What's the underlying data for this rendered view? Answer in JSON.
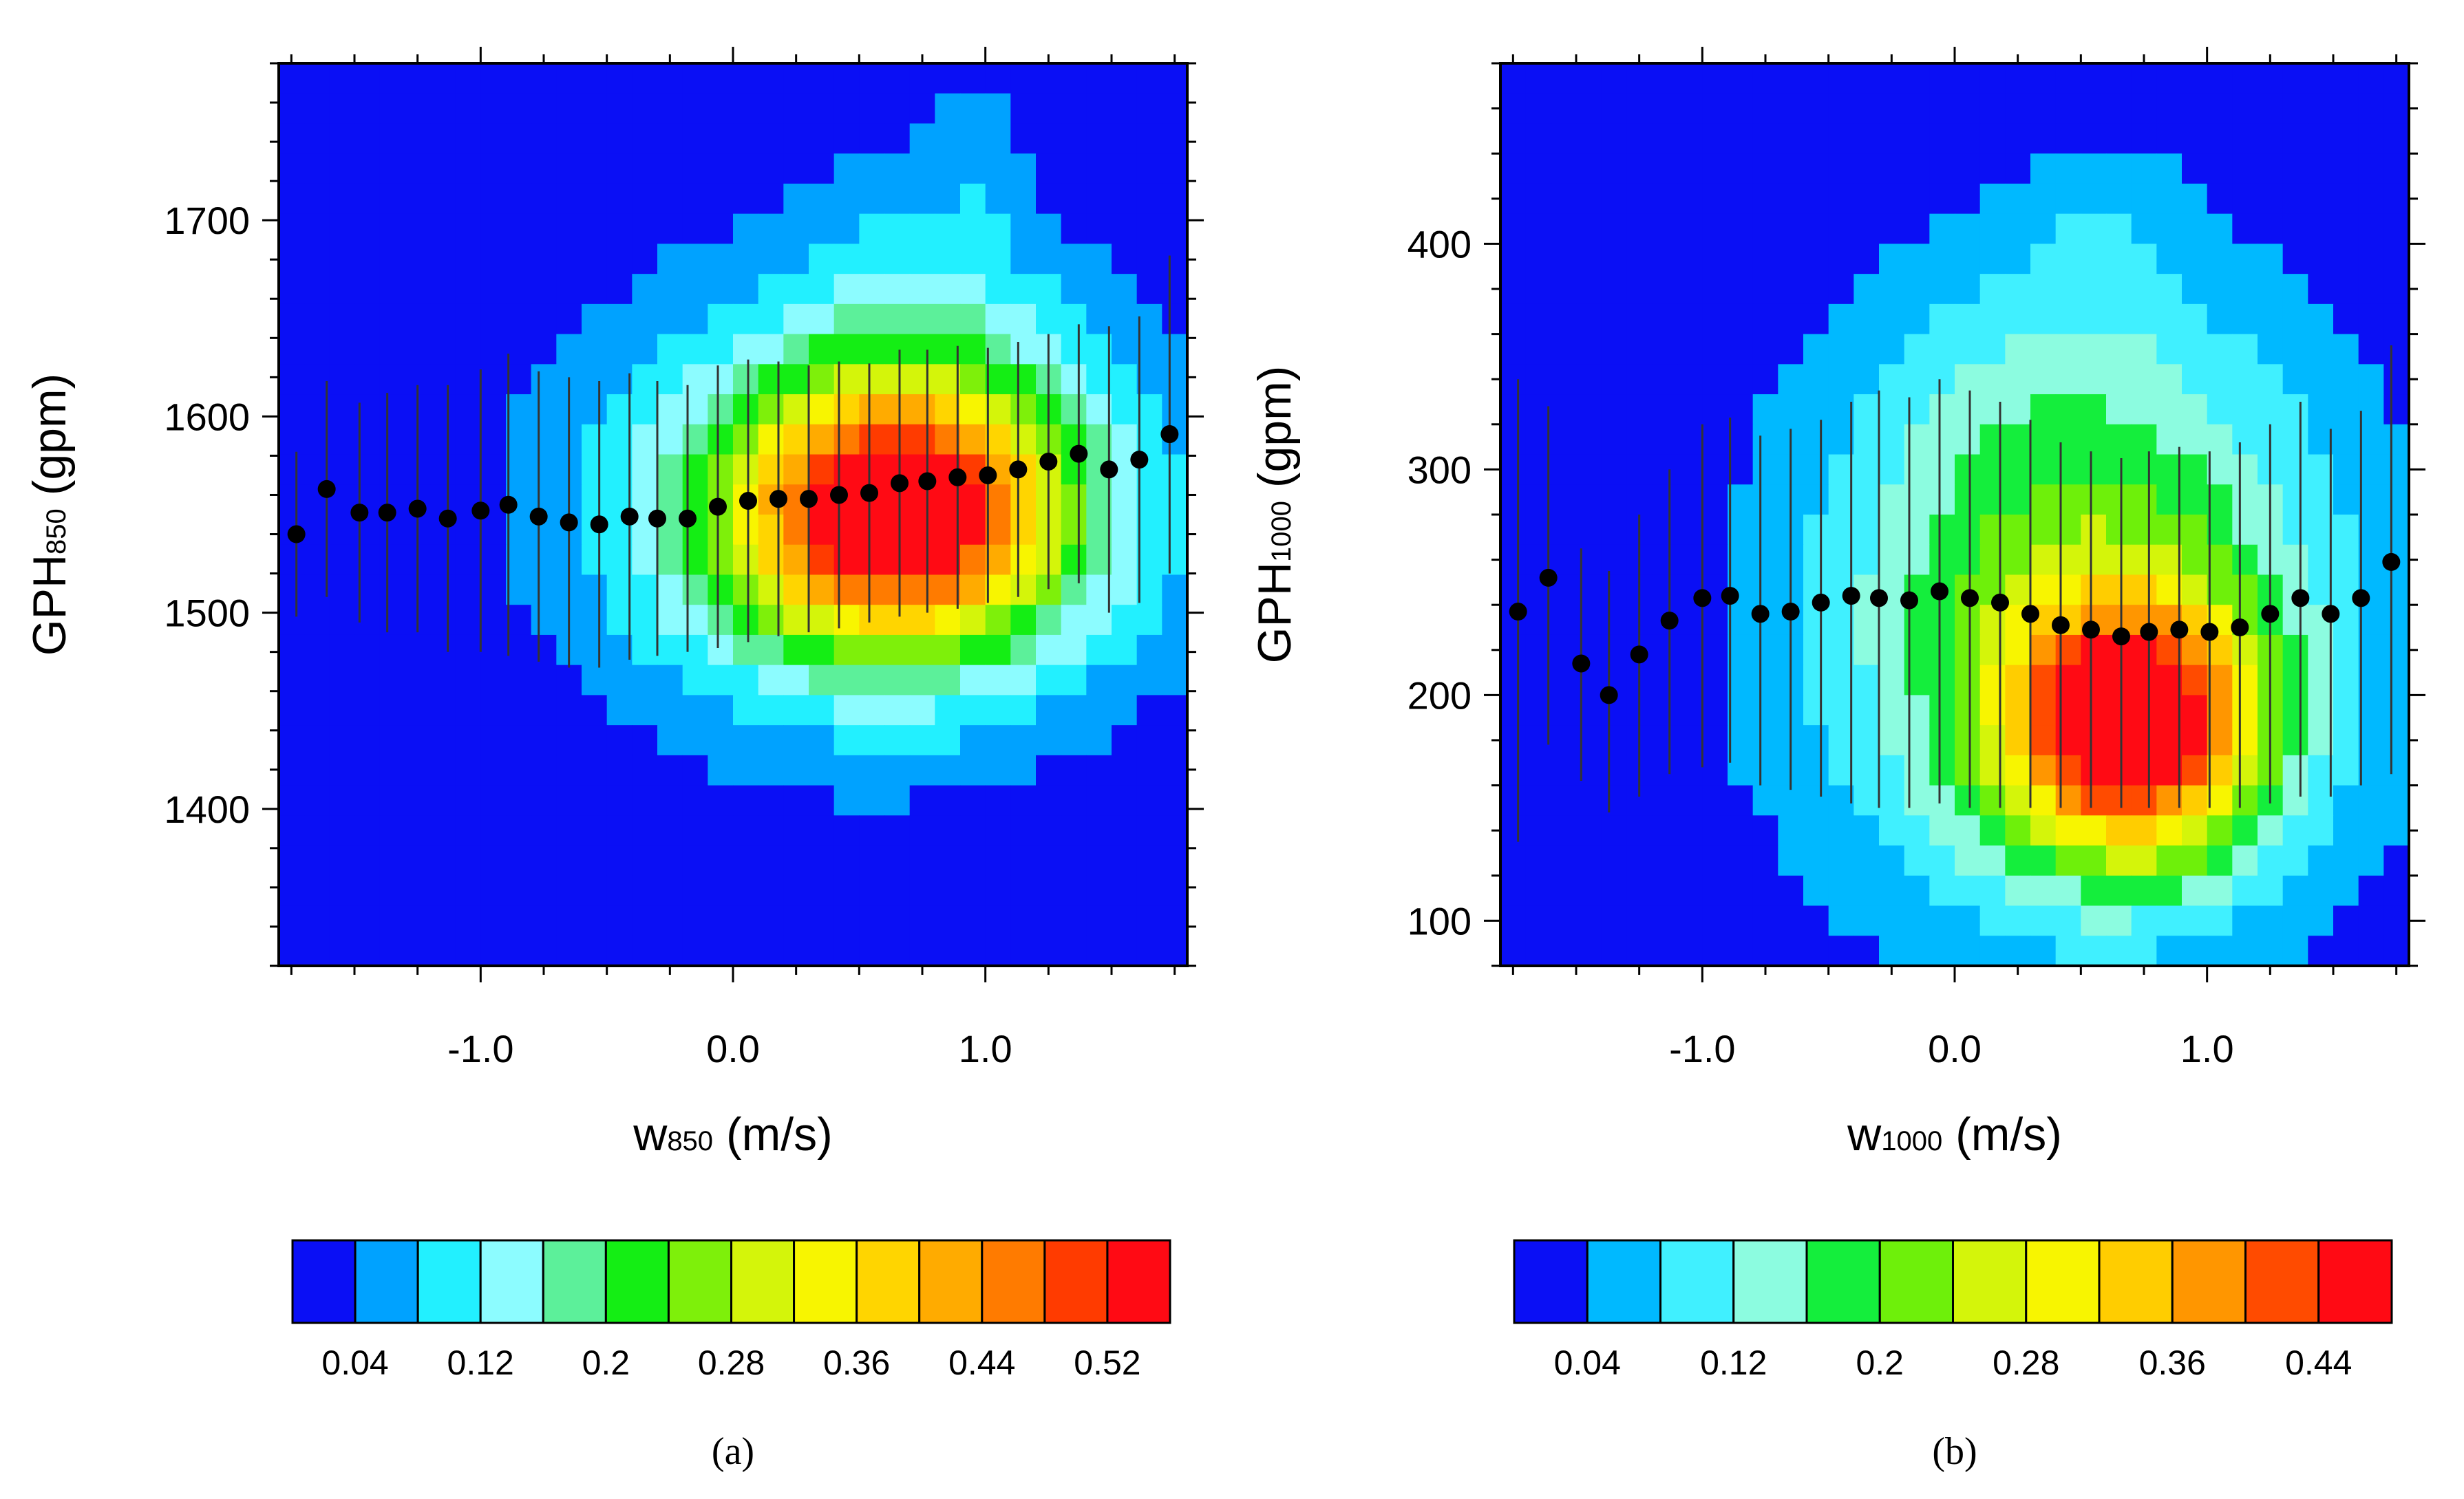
{
  "chart_data": [
    {
      "type": "heatmap",
      "panel": "(a)",
      "xlabel": {
        "main": "w",
        "sub": "850",
        "unit": " (m/s)"
      },
      "ylabel": {
        "main": "GPH",
        "sub": "850",
        "unit": " (gpm)"
      },
      "xlim": [
        -1.8,
        1.8
      ],
      "ylim": [
        1320,
        1780
      ],
      "xticks": [
        {
          "v": -1.0,
          "label": "-1.0"
        },
        {
          "v": 0.0,
          "label": "0.0"
        },
        {
          "v": 1.0,
          "label": "1.0"
        }
      ],
      "yticks": [
        {
          "v": 1400,
          "label": "1400"
        },
        {
          "v": 1500,
          "label": "1500"
        },
        {
          "v": 1600,
          "label": "1600"
        },
        {
          "v": 1700,
          "label": "1700"
        }
      ],
      "colorbar": {
        "colors": [
          "#0a0ff5",
          "#00a2ff",
          "#22f0ff",
          "#8cfcff",
          "#5cf09a",
          "#14ee14",
          "#7ef00a",
          "#d4f50a",
          "#f8f500",
          "#ffd500",
          "#ffab00",
          "#ff7b00",
          "#ff3b00",
          "#ff0a14"
        ],
        "labels": [
          {
            "after_box": 1,
            "label": "0.04"
          },
          {
            "after_box": 3,
            "label": "0.12"
          },
          {
            "after_box": 5,
            "label": "0.2"
          },
          {
            "after_box": 7,
            "label": "0.28"
          },
          {
            "after_box": 9,
            "label": "0.36"
          },
          {
            "after_box": 11,
            "label": "0.44"
          },
          {
            "after_box": 13,
            "label": "0.52"
          }
        ]
      },
      "density_blobs": [
        {
          "x": 0.65,
          "y": 1550,
          "sx": 0.45,
          "sy": 45,
          "amp": 0.44
        },
        {
          "x": 0.55,
          "y": 1555,
          "sx": 0.85,
          "sy": 85,
          "amp": 0.18
        },
        {
          "x": 0.75,
          "y": 1640,
          "sx": 0.35,
          "sy": 85,
          "amp": 0.05
        },
        {
          "x": 1.0,
          "y": 1735,
          "sx": 0.12,
          "sy": 40,
          "amp": 0.03
        }
      ],
      "points": {
        "x": [
          -1.73,
          -1.61,
          -1.48,
          -1.37,
          -1.25,
          -1.13,
          -1.0,
          -0.89,
          -0.77,
          -0.65,
          -0.53,
          -0.41,
          -0.3,
          -0.18,
          -0.06,
          0.06,
          0.18,
          0.3,
          0.42,
          0.54,
          0.66,
          0.77,
          0.89,
          1.01,
          1.13,
          1.25,
          1.37,
          1.49,
          1.61,
          1.73
        ],
        "y": [
          1540,
          1563,
          1551,
          1551,
          1553,
          1548,
          1552,
          1555,
          1549,
          1546,
          1545,
          1549,
          1548,
          1548,
          1554,
          1557,
          1558,
          1558,
          1560,
          1561,
          1566,
          1567,
          1569,
          1570,
          1573,
          1577,
          1581,
          1573,
          1578,
          1591
        ],
        "lower": [
          1498,
          1508,
          1495,
          1490,
          1490,
          1480,
          1480,
          1478,
          1475,
          1472,
          1472,
          1476,
          1478,
          1480,
          1482,
          1485,
          1488,
          1490,
          1492,
          1495,
          1498,
          1500,
          1502,
          1505,
          1508,
          1512,
          1515,
          1500,
          1505,
          1520
        ],
        "upper": [
          1582,
          1618,
          1607,
          1612,
          1616,
          1616,
          1624,
          1632,
          1623,
          1620,
          1618,
          1622,
          1618,
          1616,
          1626,
          1629,
          1628,
          1626,
          1628,
          1627,
          1634,
          1634,
          1636,
          1635,
          1638,
          1642,
          1647,
          1646,
          1651,
          1682
        ]
      }
    },
    {
      "type": "heatmap",
      "panel": "(b)",
      "xlabel": {
        "main": "w",
        "sub": "1000",
        "unit": " (m/s)"
      },
      "ylabel": {
        "main": "GPH",
        "sub": "1000",
        "unit": " (gpm)"
      },
      "xlim": [
        -1.8,
        1.8
      ],
      "ylim": [
        80,
        480
      ],
      "xticks": [
        {
          "v": -1.0,
          "label": "-1.0"
        },
        {
          "v": 0.0,
          "label": "0.0"
        },
        {
          "v": 1.0,
          "label": "1.0"
        }
      ],
      "yticks": [
        {
          "v": 100,
          "label": "100"
        },
        {
          "v": 200,
          "label": "200"
        },
        {
          "v": 300,
          "label": "300"
        },
        {
          "v": 400,
          "label": "400"
        }
      ],
      "colorbar": {
        "colors": [
          "#0a0ff5",
          "#00b9ff",
          "#40f0ff",
          "#8cfce0",
          "#14ee3c",
          "#6ef00a",
          "#d4f50a",
          "#f8f500",
          "#ffcd00",
          "#ff9600",
          "#ff4b00",
          "#ff0a14"
        ],
        "labels": [
          {
            "after_box": 1,
            "label": "0.04"
          },
          {
            "after_box": 3,
            "label": "0.12"
          },
          {
            "after_box": 5,
            "label": "0.2"
          },
          {
            "after_box": 7,
            "label": "0.28"
          },
          {
            "after_box": 9,
            "label": "0.36"
          },
          {
            "after_box": 11,
            "label": "0.44"
          }
        ]
      },
      "density_blobs": [
        {
          "x": 0.7,
          "y": 185,
          "sx": 0.35,
          "sy": 40,
          "amp": 0.38
        },
        {
          "x": 0.5,
          "y": 225,
          "sx": 0.8,
          "sy": 95,
          "amp": 0.2
        },
        {
          "x": 0.45,
          "y": 330,
          "sx": 0.6,
          "sy": 70,
          "amp": 0.05
        },
        {
          "x": 0.6,
          "y": 410,
          "sx": 0.22,
          "sy": 30,
          "amp": 0.03
        }
      ],
      "points": {
        "x": [
          -1.73,
          -1.61,
          -1.48,
          -1.37,
          -1.25,
          -1.13,
          -1.0,
          -0.89,
          -0.77,
          -0.65,
          -0.53,
          -0.41,
          -0.3,
          -0.18,
          -0.06,
          0.06,
          0.18,
          0.3,
          0.42,
          0.54,
          0.66,
          0.77,
          0.89,
          1.01,
          1.13,
          1.25,
          1.37,
          1.49,
          1.61,
          1.73
        ],
        "y": [
          237,
          252,
          214,
          200,
          218,
          233,
          243,
          244,
          236,
          237,
          241,
          244,
          243,
          242,
          246,
          243,
          241,
          236,
          231,
          229,
          226,
          228,
          229,
          228,
          230,
          236,
          243,
          236,
          243,
          259
        ],
        "lower": [
          135,
          178,
          162,
          148,
          155,
          165,
          168,
          170,
          160,
          158,
          155,
          152,
          150,
          150,
          152,
          150,
          150,
          150,
          150,
          150,
          150,
          150,
          150,
          150,
          150,
          152,
          155,
          155,
          160,
          165
        ],
        "upper": [
          340,
          328,
          265,
          255,
          280,
          300,
          320,
          323,
          315,
          318,
          322,
          330,
          335,
          332,
          340,
          335,
          330,
          322,
          312,
          308,
          305,
          308,
          310,
          308,
          312,
          320,
          330,
          318,
          326,
          355
        ]
      }
    }
  ]
}
